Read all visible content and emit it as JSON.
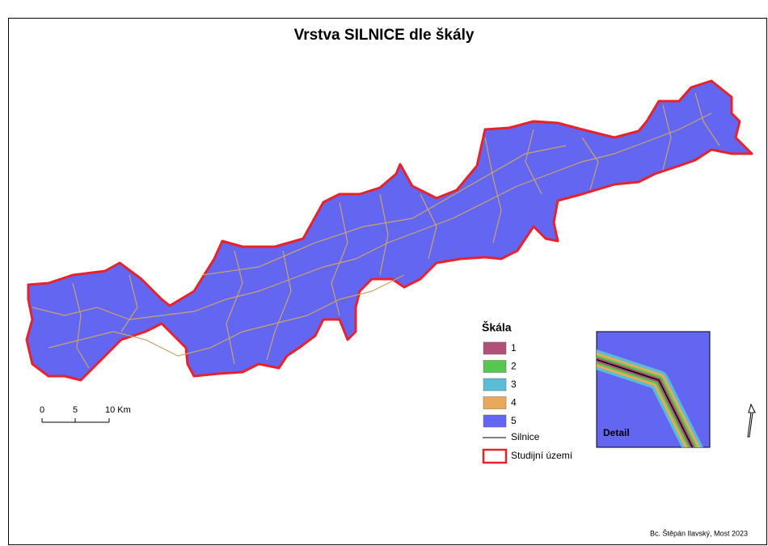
{
  "title": "Vrstva SILNICE dle škály",
  "legend": {
    "title": "Škála",
    "items": [
      {
        "label": "1",
        "color": "#b0507a"
      },
      {
        "label": "2",
        "color": "#55c94f"
      },
      {
        "label": "3",
        "color": "#5bbcd8"
      },
      {
        "label": "4",
        "color": "#e8a958"
      },
      {
        "label": "5",
        "color": "#6366f1"
      }
    ],
    "roads": "Silnice",
    "area": "Studijní území"
  },
  "scale_bar": {
    "labels": [
      "0",
      "5",
      "10 Km"
    ]
  },
  "inset": {
    "label": "Detail"
  },
  "credit": "Bc. Štěpán Ilavský, Most 2023"
}
